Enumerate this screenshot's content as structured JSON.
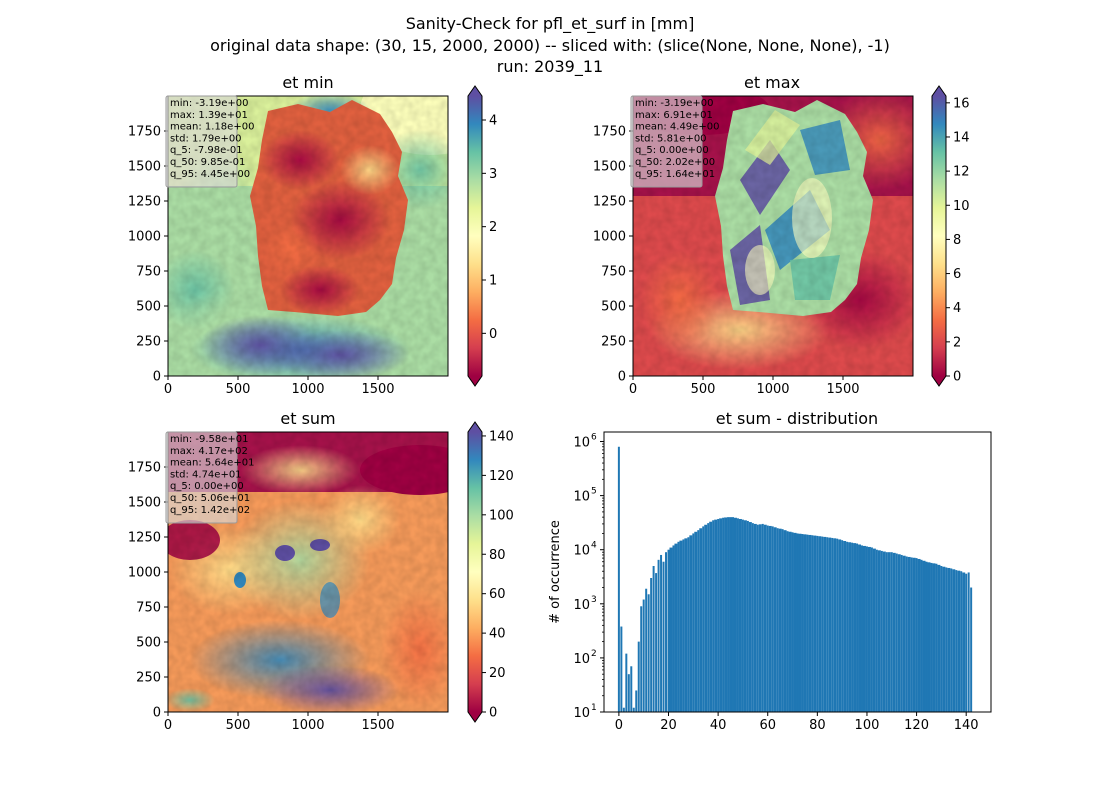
{
  "figure": {
    "title_line1": "Sanity-Check for pfl_et_surf in [mm]",
    "title_line2": "original data shape: (30, 15, 2000, 2000) -- sliced with: (slice(None, None, None), -1)",
    "title_line3": "run: 2039_11"
  },
  "chart_data": [
    {
      "type": "heatmap",
      "title": "et min",
      "colormap": "Spectral",
      "x_ticks": [
        "0",
        "500",
        "1000",
        "1500"
      ],
      "y_ticks": [
        "0",
        "250",
        "500",
        "750",
        "1000",
        "1250",
        "1500",
        "1750"
      ],
      "xlim": [
        0,
        2000
      ],
      "ylim": [
        0,
        2000
      ],
      "colorbar": {
        "ticks": [
          "0",
          "1",
          "2",
          "3",
          "4"
        ],
        "range": [
          -0.8,
          4.45
        ],
        "extend": "both"
      },
      "stats": [
        "min: -3.19e+00",
        "max: 1.39e+01",
        "mean: 1.18e+00",
        "std: 1.79e+00",
        "q_5: -7.98e-01",
        "q_50: 9.85e-01",
        "q_95: 4.45e+00"
      ]
    },
    {
      "type": "heatmap",
      "title": "et max",
      "colormap": "Spectral",
      "x_ticks": [
        "0",
        "500",
        "1000",
        "1500"
      ],
      "y_ticks": [
        "0",
        "250",
        "500",
        "750",
        "1000",
        "1250",
        "1500",
        "1750"
      ],
      "xlim": [
        0,
        2000
      ],
      "ylim": [
        0,
        2000
      ],
      "colorbar": {
        "ticks": [
          "0",
          "2",
          "4",
          "6",
          "8",
          "10",
          "12",
          "14",
          "16"
        ],
        "range": [
          0,
          16.4
        ],
        "extend": "both"
      },
      "stats": [
        "min: -3.19e+00",
        "max: 6.91e+01",
        "mean: 4.49e+00",
        "std: 5.81e+00",
        "q_5: 0.00e+00",
        "q_50: 2.02e+00",
        "q_95: 1.64e+01"
      ]
    },
    {
      "type": "heatmap",
      "title": "et sum",
      "colormap": "Spectral",
      "x_ticks": [
        "0",
        "500",
        "1000",
        "1500"
      ],
      "y_ticks": [
        "0",
        "250",
        "500",
        "750",
        "1000",
        "1250",
        "1500",
        "1750"
      ],
      "xlim": [
        0,
        2000
      ],
      "ylim": [
        0,
        2000
      ],
      "colorbar": {
        "ticks": [
          "0",
          "20",
          "40",
          "60",
          "80",
          "100",
          "120",
          "140"
        ],
        "range": [
          0,
          142
        ],
        "extend": "both"
      },
      "stats": [
        "min: -9.58e+01",
        "max: 4.17e+02",
        "mean: 5.64e+01",
        "std: 4.74e+01",
        "q_5: 0.00e+00",
        "q_50: 5.06e+01",
        "q_95: 1.42e+02"
      ]
    },
    {
      "type": "bar",
      "title": "et sum - distribution",
      "xlabel": "",
      "ylabel": "# of occurrence",
      "yscale": "log",
      "xlim": [
        -6,
        150
      ],
      "ylim": [
        10,
        1500000
      ],
      "x_ticks": [
        0,
        20,
        40,
        60,
        80,
        100,
        120,
        140
      ],
      "y_ticks": [
        {
          "base": "10",
          "exp": "1"
        },
        {
          "base": "10",
          "exp": "2"
        },
        {
          "base": "10",
          "exp": "3"
        },
        {
          "base": "10",
          "exp": "4"
        },
        {
          "base": "10",
          "exp": "5"
        },
        {
          "base": "10",
          "exp": "6"
        }
      ],
      "color": "#1f77b4",
      "bin_width": 0.8,
      "bins": [
        {
          "x": 0,
          "y": 800000
        },
        {
          "x": 1,
          "y": 380
        },
        {
          "x": 2,
          "y": 12
        },
        {
          "x": 3,
          "y": 120
        },
        {
          "x": 4,
          "y": 50
        },
        {
          "x": 5,
          "y": 70
        },
        {
          "x": 6,
          "y": 12
        },
        {
          "x": 7,
          "y": 25
        },
        {
          "x": 8,
          "y": 200
        },
        {
          "x": 9,
          "y": 900
        },
        {
          "x": 10,
          "y": 1200
        },
        {
          "x": 11,
          "y": 1900
        },
        {
          "x": 12,
          "y": 1500
        },
        {
          "x": 13,
          "y": 3000
        },
        {
          "x": 14,
          "y": 5000
        },
        {
          "x": 15,
          "y": 3700
        },
        {
          "x": 16,
          "y": 6500
        },
        {
          "x": 17,
          "y": 8000
        },
        {
          "x": 18,
          "y": 6000
        },
        {
          "x": 19,
          "y": 9000
        },
        {
          "x": 20,
          "y": 10000
        },
        {
          "x": 22,
          "y": 12000
        },
        {
          "x": 24,
          "y": 14000
        },
        {
          "x": 26,
          "y": 15500
        },
        {
          "x": 28,
          "y": 17000
        },
        {
          "x": 30,
          "y": 20000
        },
        {
          "x": 32,
          "y": 23000
        },
        {
          "x": 34,
          "y": 27000
        },
        {
          "x": 36,
          "y": 31000
        },
        {
          "x": 38,
          "y": 35000
        },
        {
          "x": 40,
          "y": 37000
        },
        {
          "x": 42,
          "y": 39000
        },
        {
          "x": 44,
          "y": 40000
        },
        {
          "x": 46,
          "y": 40000
        },
        {
          "x": 48,
          "y": 38000
        },
        {
          "x": 50,
          "y": 36000
        },
        {
          "x": 52,
          "y": 34000
        },
        {
          "x": 54,
          "y": 31000
        },
        {
          "x": 56,
          "y": 29000
        },
        {
          "x": 58,
          "y": 30000
        },
        {
          "x": 60,
          "y": 28000
        },
        {
          "x": 62,
          "y": 27000
        },
        {
          "x": 64,
          "y": 25000
        },
        {
          "x": 66,
          "y": 24000
        },
        {
          "x": 68,
          "y": 22000
        },
        {
          "x": 70,
          "y": 21000
        },
        {
          "x": 72,
          "y": 20000
        },
        {
          "x": 74,
          "y": 19500
        },
        {
          "x": 76,
          "y": 19000
        },
        {
          "x": 78,
          "y": 18500
        },
        {
          "x": 80,
          "y": 18000
        },
        {
          "x": 82,
          "y": 17500
        },
        {
          "x": 84,
          "y": 17000
        },
        {
          "x": 86,
          "y": 16500
        },
        {
          "x": 88,
          "y": 16000
        },
        {
          "x": 90,
          "y": 15000
        },
        {
          "x": 92,
          "y": 14000
        },
        {
          "x": 94,
          "y": 13500
        },
        {
          "x": 96,
          "y": 13000
        },
        {
          "x": 98,
          "y": 12000
        },
        {
          "x": 100,
          "y": 11500
        },
        {
          "x": 102,
          "y": 11000
        },
        {
          "x": 104,
          "y": 10000
        },
        {
          "x": 106,
          "y": 9500
        },
        {
          "x": 108,
          "y": 9000
        },
        {
          "x": 110,
          "y": 9000
        },
        {
          "x": 112,
          "y": 8500
        },
        {
          "x": 114,
          "y": 8000
        },
        {
          "x": 116,
          "y": 7500
        },
        {
          "x": 118,
          "y": 7200
        },
        {
          "x": 120,
          "y": 7000
        },
        {
          "x": 122,
          "y": 6500
        },
        {
          "x": 124,
          "y": 6000
        },
        {
          "x": 126,
          "y": 5700
        },
        {
          "x": 128,
          "y": 5500
        },
        {
          "x": 130,
          "y": 5000
        },
        {
          "x": 132,
          "y": 4700
        },
        {
          "x": 134,
          "y": 4500
        },
        {
          "x": 136,
          "y": 4200
        },
        {
          "x": 138,
          "y": 4000
        },
        {
          "x": 140,
          "y": 3600
        },
        {
          "x": 141,
          "y": 3800
        },
        {
          "x": 142,
          "y": 2000
        }
      ]
    }
  ]
}
